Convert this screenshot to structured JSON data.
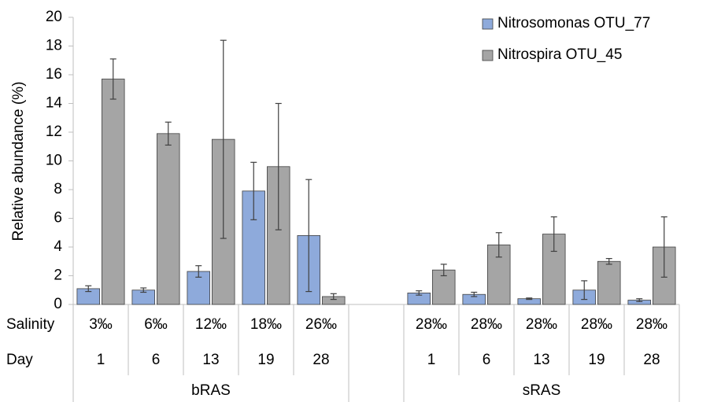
{
  "chart_data": {
    "type": "bar",
    "y_label": "Relative abundance (%)",
    "ylim": [
      0,
      20
    ],
    "yticks": [
      0,
      2,
      4,
      6,
      8,
      10,
      12,
      14,
      16,
      18,
      20
    ],
    "legend": "top-right",
    "category_levels": [
      {
        "name": "Salinity",
        "labels": [
          "3‰",
          "6‰",
          "12‰",
          "18‰",
          "26‰",
          null,
          "28‰",
          "28‰",
          "28‰",
          "28‰",
          "28‰"
        ]
      },
      {
        "name": "Day",
        "labels": [
          "1",
          "6",
          "13",
          "19",
          "28",
          null,
          "1",
          "6",
          "13",
          "19",
          "28"
        ]
      }
    ],
    "groups": [
      {
        "name": "bRAS",
        "first": 0,
        "last": 4
      },
      {
        "name": "sRAS",
        "first": 6,
        "last": 10
      }
    ],
    "series": [
      {
        "name": "Nitrosomonas OTU_77",
        "color": "#8eaadb",
        "values": [
          1.1,
          1.0,
          2.3,
          7.9,
          4.8,
          null,
          0.8,
          0.7,
          0.4,
          1.0,
          0.3
        ],
        "errors": [
          0.2,
          0.15,
          0.4,
          2.0,
          3.9,
          null,
          0.15,
          0.15,
          0.05,
          0.65,
          0.1
        ]
      },
      {
        "name": "Nitrospira OTU_45",
        "color": "#a5a5a5",
        "values": [
          15.7,
          11.9,
          11.5,
          9.6,
          0.55,
          null,
          2.4,
          4.15,
          4.9,
          3.0,
          4.0
        ],
        "errors": [
          1.4,
          0.8,
          6.9,
          4.4,
          0.2,
          null,
          0.4,
          0.85,
          1.2,
          0.2,
          2.1
        ]
      }
    ]
  }
}
